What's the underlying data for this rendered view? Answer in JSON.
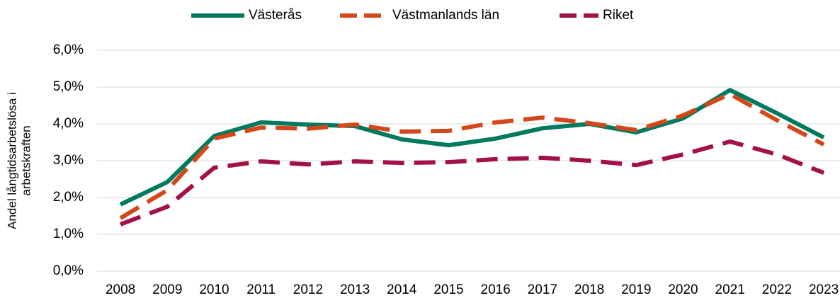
{
  "chart_data": {
    "type": "line",
    "ylabel": [
      "Andel långtidsarbetslösa i",
      "arbetskraften"
    ],
    "categories": [
      "2008",
      "2009",
      "2010",
      "2011",
      "2012",
      "2013",
      "2014",
      "2015",
      "2016",
      "2017",
      "2018",
      "2019",
      "2020",
      "2021",
      "2022",
      "2023"
    ],
    "series": [
      {
        "name": "Västerås",
        "color": "#007a5e",
        "style": "solid",
        "values": [
          1.81,
          2.42,
          3.67,
          4.04,
          3.98,
          3.94,
          3.58,
          3.42,
          3.6,
          3.88,
          4.0,
          3.77,
          4.15,
          4.92,
          4.29,
          3.63
        ]
      },
      {
        "name": "Västmanlands län",
        "color": "#d4471a",
        "style": "dashed",
        "values": [
          1.44,
          2.2,
          3.6,
          3.9,
          3.87,
          3.98,
          3.79,
          3.81,
          4.04,
          4.17,
          4.02,
          3.83,
          4.23,
          4.81,
          4.1,
          3.44
        ]
      },
      {
        "name": "Riket",
        "color": "#a3104a",
        "style": "dashed",
        "values": [
          1.27,
          1.75,
          2.81,
          2.98,
          2.9,
          2.98,
          2.94,
          2.96,
          3.04,
          3.08,
          3.0,
          2.88,
          3.17,
          3.52,
          3.17,
          2.67
        ]
      }
    ],
    "ylim": [
      0,
      6
    ],
    "yticks": [
      {
        "value": 0,
        "label": "0,0%"
      },
      {
        "value": 1,
        "label": "1,0%"
      },
      {
        "value": 2,
        "label": "2,0%"
      },
      {
        "value": 3,
        "label": "3,0%"
      },
      {
        "value": 4,
        "label": "4,0%"
      },
      {
        "value": 5,
        "label": "5,0%"
      },
      {
        "value": 6,
        "label": "6,0%"
      }
    ],
    "grid": true,
    "legend": "top"
  }
}
